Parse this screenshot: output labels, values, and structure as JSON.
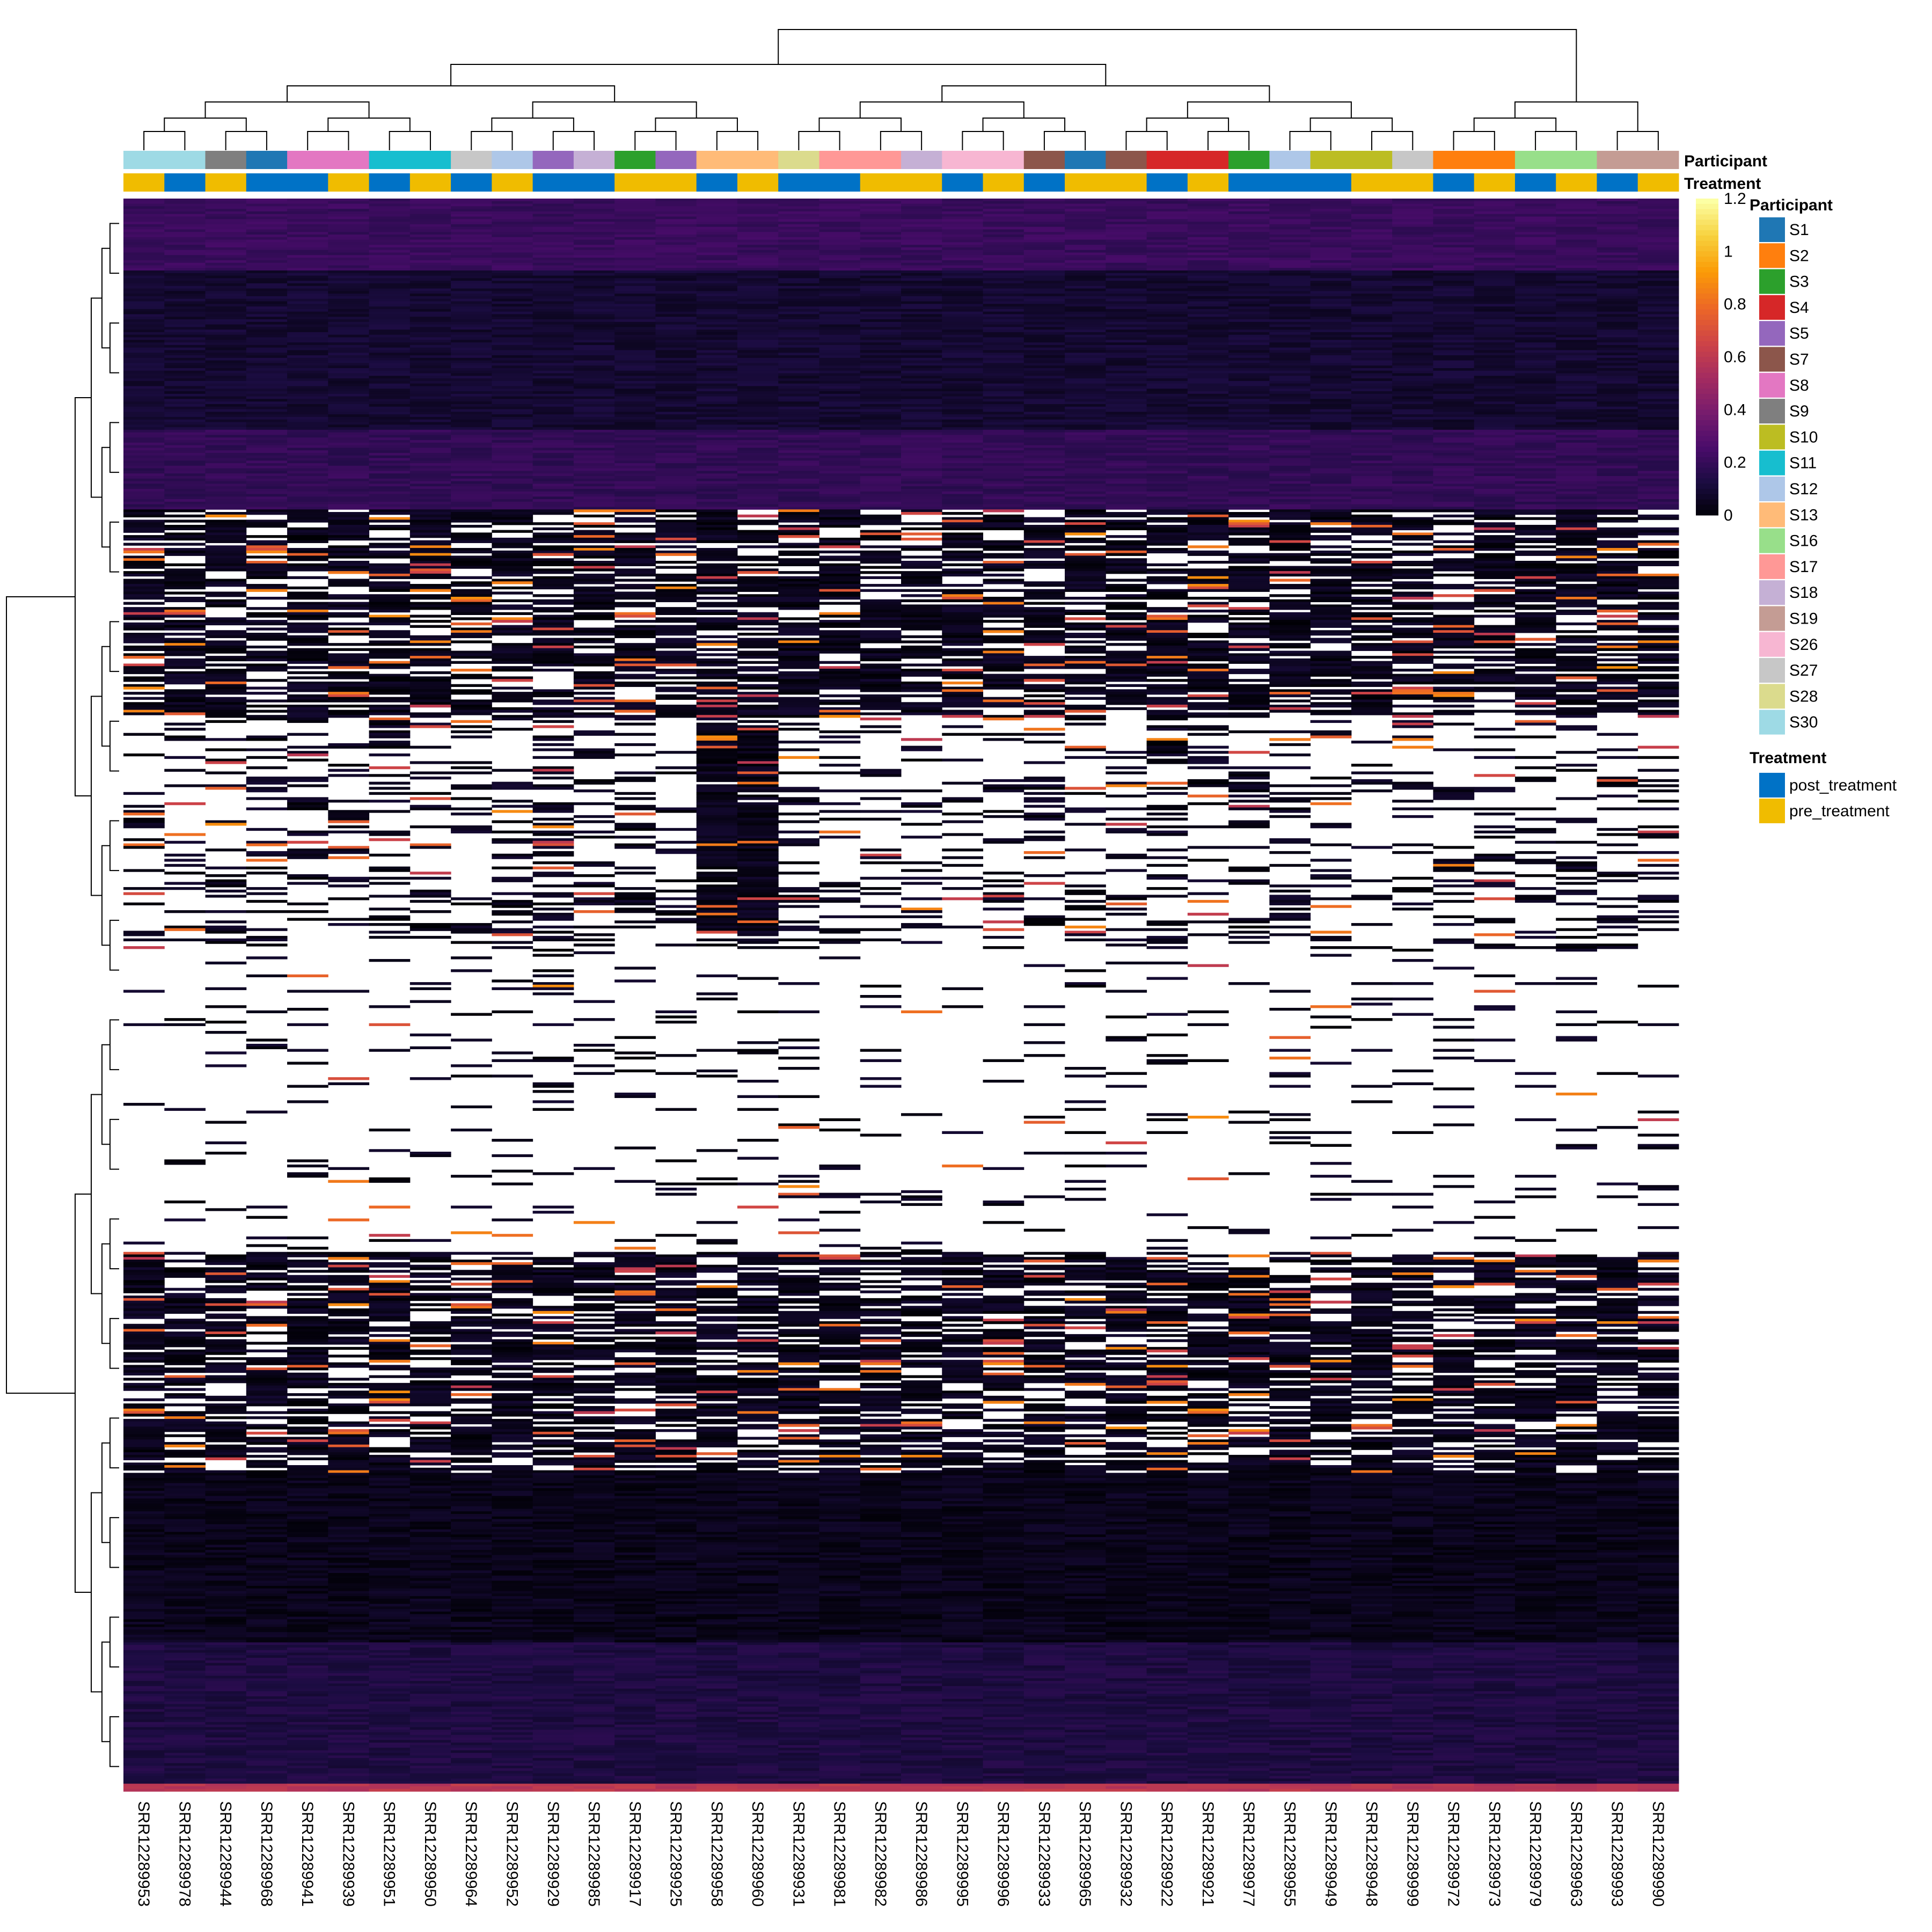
{
  "chart_data": {
    "type": "heatmap",
    "title": "",
    "annotation_tracks": [
      "Participant",
      "Treatment"
    ],
    "columns": [
      {
        "sample": "SRR12289953",
        "participant": "S30",
        "treatment": "pre_treatment"
      },
      {
        "sample": "SRR12289978",
        "participant": "S30",
        "treatment": "post_treatment"
      },
      {
        "sample": "SRR12289944",
        "participant": "S9",
        "treatment": "pre_treatment"
      },
      {
        "sample": "SRR12289968",
        "participant": "S1",
        "treatment": "post_treatment"
      },
      {
        "sample": "SRR12289941",
        "participant": "S8",
        "treatment": "post_treatment"
      },
      {
        "sample": "SRR12289939",
        "participant": "S8",
        "treatment": "pre_treatment"
      },
      {
        "sample": "SRR12289951",
        "participant": "S11",
        "treatment": "post_treatment"
      },
      {
        "sample": "SRR12289950",
        "participant": "S11",
        "treatment": "pre_treatment"
      },
      {
        "sample": "SRR12289964",
        "participant": "S27",
        "treatment": "post_treatment"
      },
      {
        "sample": "SRR12289952",
        "participant": "S12",
        "treatment": "pre_treatment"
      },
      {
        "sample": "SRR12289929",
        "participant": "S5",
        "treatment": "post_treatment"
      },
      {
        "sample": "SRR12289985",
        "participant": "S18",
        "treatment": "post_treatment"
      },
      {
        "sample": "SRR12289917",
        "participant": "S3",
        "treatment": "pre_treatment"
      },
      {
        "sample": "SRR12289925",
        "participant": "S5",
        "treatment": "pre_treatment"
      },
      {
        "sample": "SRR12289958",
        "participant": "S13",
        "treatment": "post_treatment"
      },
      {
        "sample": "SRR12289960",
        "participant": "S13",
        "treatment": "pre_treatment"
      },
      {
        "sample": "SRR12289931",
        "participant": "S28",
        "treatment": "post_treatment"
      },
      {
        "sample": "SRR12289981",
        "participant": "S17",
        "treatment": "post_treatment"
      },
      {
        "sample": "SRR12289982",
        "participant": "S17",
        "treatment": "pre_treatment"
      },
      {
        "sample": "SRR12289986",
        "participant": "S18",
        "treatment": "pre_treatment"
      },
      {
        "sample": "SRR12289995",
        "participant": "S26",
        "treatment": "post_treatment"
      },
      {
        "sample": "SRR12289996",
        "participant": "S26",
        "treatment": "pre_treatment"
      },
      {
        "sample": "SRR12289933",
        "participant": "S7",
        "treatment": "post_treatment"
      },
      {
        "sample": "SRR12289965",
        "participant": "S1",
        "treatment": "pre_treatment"
      },
      {
        "sample": "SRR12289932",
        "participant": "S7",
        "treatment": "pre_treatment"
      },
      {
        "sample": "SRR12289922",
        "participant": "S4",
        "treatment": "post_treatment"
      },
      {
        "sample": "SRR12289921",
        "participant": "S4",
        "treatment": "pre_treatment"
      },
      {
        "sample": "SRR12289977",
        "participant": "S3",
        "treatment": "post_treatment"
      },
      {
        "sample": "SRR12289955",
        "participant": "S12",
        "treatment": "post_treatment"
      },
      {
        "sample": "SRR12289949",
        "participant": "S10",
        "treatment": "post_treatment"
      },
      {
        "sample": "SRR12289948",
        "participant": "S10",
        "treatment": "pre_treatment"
      },
      {
        "sample": "SRR12289999",
        "participant": "S27",
        "treatment": "pre_treatment"
      },
      {
        "sample": "SRR12289972",
        "participant": "S2",
        "treatment": "post_treatment"
      },
      {
        "sample": "SRR12289973",
        "participant": "S2",
        "treatment": "pre_treatment"
      },
      {
        "sample": "SRR12289979",
        "participant": "S16",
        "treatment": "post_treatment"
      },
      {
        "sample": "SRR12289963",
        "participant": "S16",
        "treatment": "pre_treatment"
      },
      {
        "sample": "SRR12289993",
        "participant": "S19",
        "treatment": "post_treatment"
      },
      {
        "sample": "SRR12289990",
        "participant": "S19",
        "treatment": "pre_treatment"
      }
    ],
    "participant_legend": {
      "title": "Participant",
      "items": [
        {
          "label": "S1",
          "color": "#1f77b4"
        },
        {
          "label": "S2",
          "color": "#ff7f0e"
        },
        {
          "label": "S3",
          "color": "#2ca02c"
        },
        {
          "label": "S4",
          "color": "#d62728"
        },
        {
          "label": "S5",
          "color": "#9467bd"
        },
        {
          "label": "S7",
          "color": "#8c564b"
        },
        {
          "label": "S8",
          "color": "#e377c2"
        },
        {
          "label": "S9",
          "color": "#7f7f7f"
        },
        {
          "label": "S10",
          "color": "#bcbd22"
        },
        {
          "label": "S11",
          "color": "#17becf"
        },
        {
          "label": "S12",
          "color": "#aec7e8"
        },
        {
          "label": "S13",
          "color": "#ffbb78"
        },
        {
          "label": "S16",
          "color": "#98df8a"
        },
        {
          "label": "S17",
          "color": "#ff9896"
        },
        {
          "label": "S18",
          "color": "#c5b0d5"
        },
        {
          "label": "S19",
          "color": "#c49c94"
        },
        {
          "label": "S26",
          "color": "#f7b6d2"
        },
        {
          "label": "S27",
          "color": "#c7c7c7"
        },
        {
          "label": "S28",
          "color": "#dbdb8d"
        },
        {
          "label": "S30",
          "color": "#9edae5"
        }
      ]
    },
    "treatment_legend": {
      "title": "Treatment",
      "items": [
        {
          "label": "post_treatment",
          "color": "#0072c6"
        },
        {
          "label": "pre_treatment",
          "color": "#f0bc00"
        }
      ]
    },
    "colorbar": {
      "range": [
        0,
        1.2
      ],
      "ticks": [
        "1.2",
        "1",
        "0.8",
        "0.6",
        "0.4",
        "0.2",
        "0"
      ],
      "colors": [
        "#000004",
        "#1b0c41",
        "#4a0c6b",
        "#781c6d",
        "#a52c60",
        "#cf4446",
        "#ed6925",
        "#fb9b06",
        "#f7d13d",
        "#fcffa4"
      ]
    },
    "row_bands": [
      {
        "from": 0.0,
        "to": 0.045,
        "level": 0.22
      },
      {
        "from": 0.045,
        "to": 0.145,
        "level": 0.1
      },
      {
        "from": 0.145,
        "to": 0.195,
        "level": 0.2
      },
      {
        "from": 0.195,
        "to": 0.325,
        "level": "mixed-dark"
      },
      {
        "from": 0.325,
        "to": 0.47,
        "level": "sparse"
      },
      {
        "from": 0.47,
        "to": 0.66,
        "level": "very-sparse"
      },
      {
        "from": 0.66,
        "to": 0.8,
        "level": "mixed-dark"
      },
      {
        "from": 0.8,
        "to": 0.905,
        "level": 0.05
      },
      {
        "from": 0.905,
        "to": 0.995,
        "level": 0.14
      },
      {
        "from": 0.995,
        "to": 1.0,
        "level": 0.6
      }
    ]
  }
}
